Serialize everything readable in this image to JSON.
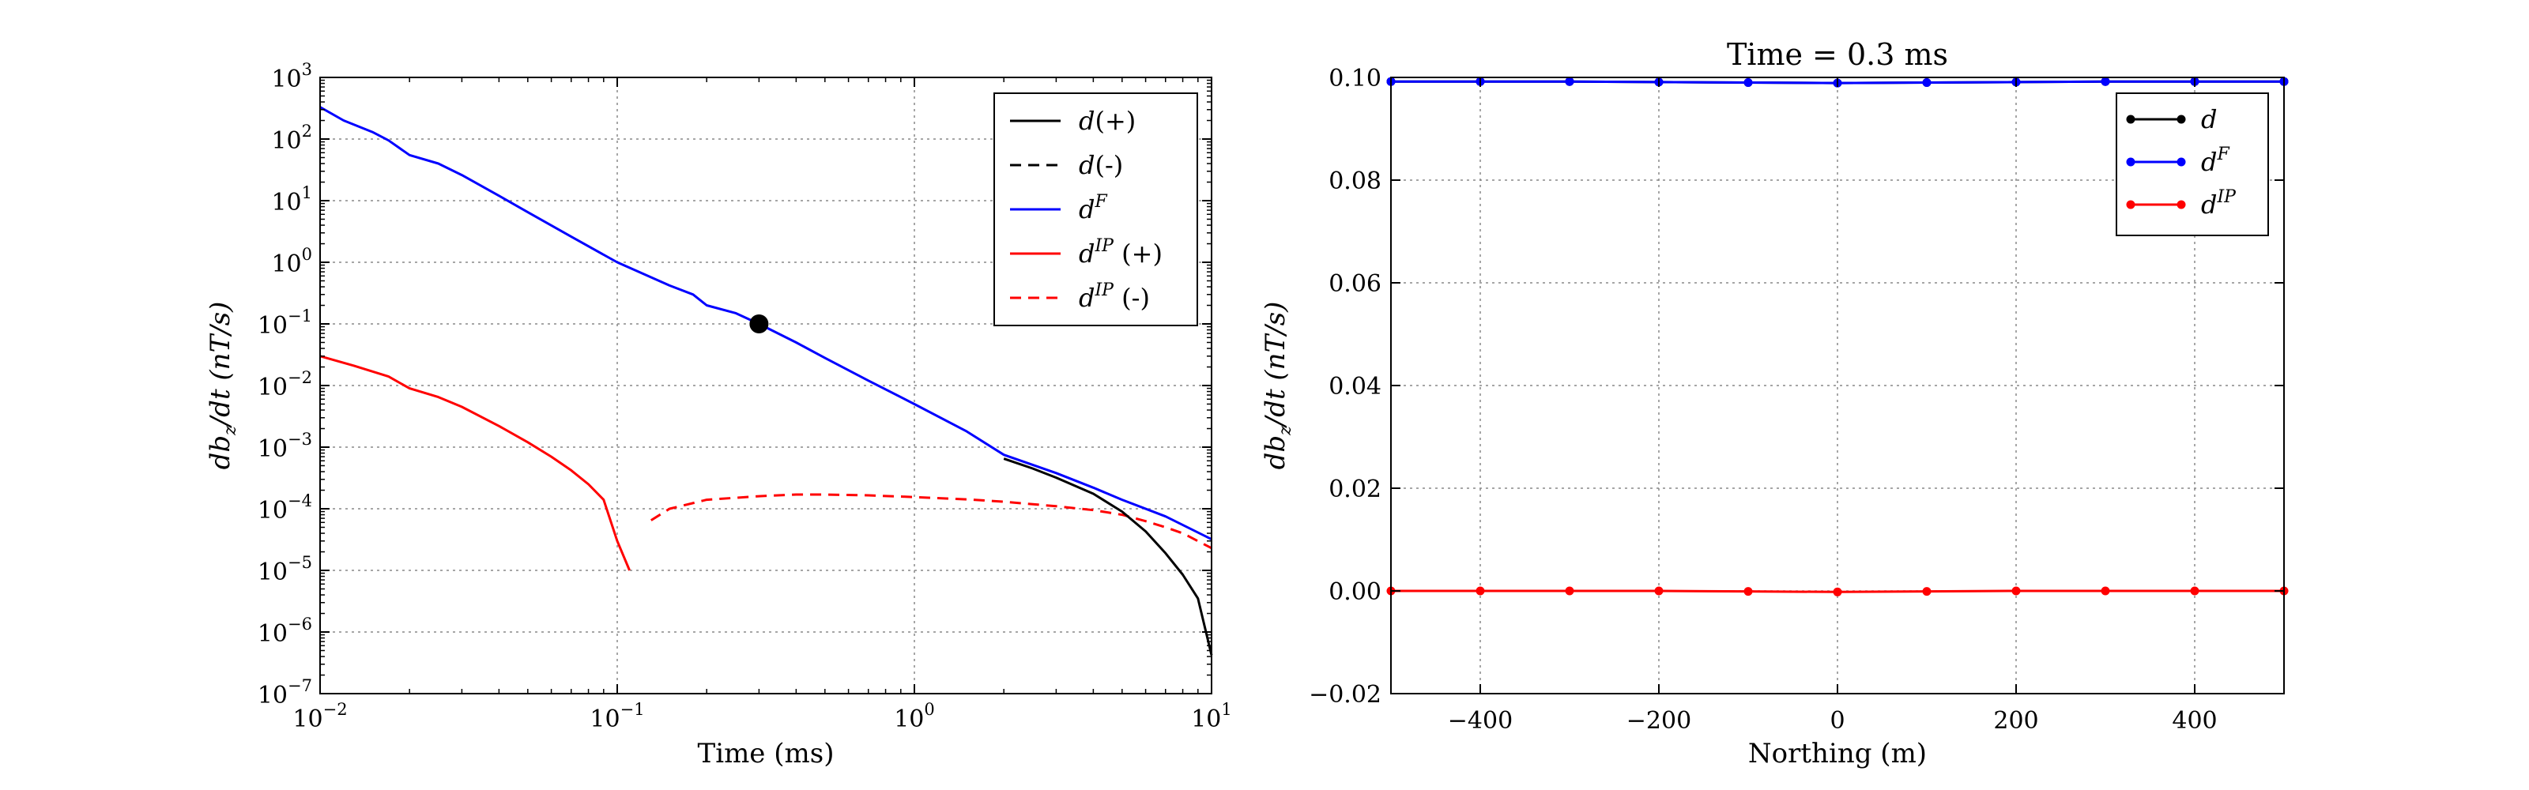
{
  "chart_data": [
    {
      "type": "line",
      "xscale": "log",
      "yscale": "log",
      "xlim": [
        0.01,
        10
      ],
      "ylim": [
        1e-07,
        1000
      ],
      "xlabel": "Time (ms)",
      "ylabel": "db_z/dt (nT/s)",
      "grid": true,
      "legend_position": "top-right",
      "xticks": [
        {
          "value": 0.01,
          "base": "10",
          "exp": "−2"
        },
        {
          "value": 0.1,
          "base": "10",
          "exp": "−1"
        },
        {
          "value": 1,
          "base": "10",
          "exp": "0"
        },
        {
          "value": 10,
          "base": "10",
          "exp": "1"
        }
      ],
      "yticks": [
        {
          "value": 1e-07,
          "base": "10",
          "exp": "−7"
        },
        {
          "value": 1e-06,
          "base": "10",
          "exp": "−6"
        },
        {
          "value": 1e-05,
          "base": "10",
          "exp": "−5"
        },
        {
          "value": 0.0001,
          "base": "10",
          "exp": "−4"
        },
        {
          "value": 0.001,
          "base": "10",
          "exp": "−3"
        },
        {
          "value": 0.01,
          "base": "10",
          "exp": "−2"
        },
        {
          "value": 0.1,
          "base": "10",
          "exp": "−1"
        },
        {
          "value": 1,
          "base": "10",
          "exp": "0"
        },
        {
          "value": 10,
          "base": "10",
          "exp": "1"
        },
        {
          "value": 100,
          "base": "10",
          "exp": "2"
        },
        {
          "value": 1000,
          "base": "10",
          "exp": "3"
        }
      ],
      "series": [
        {
          "name": "d(+)",
          "legend_main": "d",
          "legend_sup": "",
          "legend_suffix": "(+)",
          "color": "#000000",
          "dash": "solid",
          "x": [
            2.0,
            2.5,
            3.0,
            4.0,
            5.0,
            6.0,
            7.0,
            8.0,
            9.0,
            10.0
          ],
          "y": [
            0.00065,
            0.00045,
            0.00032,
            0.000175,
            9e-05,
            4.3e-05,
            1.9e-05,
            8.5e-06,
            3.5e-06,
            4.2e-07
          ]
        },
        {
          "name": "d(-)",
          "legend_main": "d",
          "legend_sup": "",
          "legend_suffix": "(-)",
          "color": "#000000",
          "dash": "dashed",
          "x": [],
          "y": []
        },
        {
          "name": "d^F",
          "legend_main": "d",
          "legend_sup": "F",
          "legend_suffix": "",
          "color": "#0000ff",
          "dash": "solid",
          "x": [
            0.01,
            0.012,
            0.015,
            0.017,
            0.02,
            0.025,
            0.03,
            0.04,
            0.05,
            0.07,
            0.1,
            0.15,
            0.18,
            0.2,
            0.25,
            0.3,
            0.4,
            0.5,
            0.7,
            1.0,
            1.5,
            2.0,
            3.0,
            4.0,
            5.0,
            7.0,
            10.0
          ],
          "y": [
            330,
            200,
            130,
            95,
            55,
            40,
            26,
            12,
            6.5,
            2.6,
            1.0,
            0.42,
            0.3,
            0.2,
            0.15,
            0.1,
            0.05,
            0.028,
            0.012,
            0.005,
            0.0018,
            0.00075,
            0.00038,
            0.00022,
            0.00014,
            7.5e-05,
            3.2e-05
          ]
        },
        {
          "name": "d^IP (+)",
          "legend_main": "d",
          "legend_sup": "IP",
          "legend_suffix": "(+)",
          "color": "#ff0000",
          "dash": "solid",
          "x": [
            0.01,
            0.013,
            0.017,
            0.02,
            0.025,
            0.03,
            0.04,
            0.05,
            0.06,
            0.07,
            0.08,
            0.09,
            0.1,
            0.11
          ],
          "y": [
            0.03,
            0.021,
            0.014,
            0.009,
            0.0065,
            0.0045,
            0.0022,
            0.0012,
            0.0007,
            0.00042,
            0.00025,
            0.00014,
            3e-05,
            1e-05
          ]
        },
        {
          "name": "d^IP (-)",
          "legend_main": "d",
          "legend_sup": "IP",
          "legend_suffix": "(-)",
          "color": "#ff0000",
          "dash": "dashed",
          "x": [
            0.13,
            0.15,
            0.2,
            0.3,
            0.4,
            0.5,
            0.7,
            1.0,
            1.5,
            2.0,
            3.0,
            4.0,
            5.0,
            6.0,
            7.0,
            8.0,
            10.0
          ],
          "y": [
            6.5e-05,
            0.0001,
            0.00014,
            0.00016,
            0.00017,
            0.00017,
            0.000165,
            0.000155,
            0.000142,
            0.00013,
            0.00011,
            9.5e-05,
            8e-05,
            6.3e-05,
            5e-05,
            4e-05,
            2.3e-05
          ]
        }
      ],
      "marker": {
        "x": 0.3,
        "y": 0.1,
        "color": "#000000"
      }
    },
    {
      "type": "line",
      "title": "Time = 0.3 ms",
      "xlim": [
        -500,
        500
      ],
      "ylim": [
        -0.02,
        0.1
      ],
      "xlabel": "Northing (m)",
      "ylabel": "db_z/dt (nT/s)",
      "grid": true,
      "legend_position": "top-right",
      "xticks": [
        "−400",
        "−200",
        "0",
        "200",
        "400"
      ],
      "xtick_values": [
        -400,
        -200,
        0,
        200,
        400
      ],
      "yticks": [
        "−0.02",
        "0.00",
        "0.02",
        "0.04",
        "0.06",
        "0.08",
        "0.10"
      ],
      "ytick_values": [
        -0.02,
        0.0,
        0.02,
        0.04,
        0.06,
        0.08,
        0.1
      ],
      "series": [
        {
          "name": "d",
          "legend_main": "d",
          "legend_sup": "",
          "color": "#000000",
          "x": [
            -500,
            -400,
            -300,
            -200,
            -100,
            0,
            100,
            200,
            300,
            400,
            500
          ],
          "y": [
            0.0992,
            0.0992,
            0.0992,
            0.0991,
            0.099,
            0.0989,
            0.099,
            0.0991,
            0.0992,
            0.0992,
            0.0992
          ]
        },
        {
          "name": "d^F",
          "legend_main": "d",
          "legend_sup": "F",
          "color": "#0000ff",
          "x": [
            -500,
            -400,
            -300,
            -200,
            -100,
            0,
            100,
            200,
            300,
            400,
            500
          ],
          "y": [
            0.0992,
            0.0992,
            0.0992,
            0.0991,
            0.099,
            0.0989,
            0.099,
            0.0991,
            0.0992,
            0.0992,
            0.0992
          ]
        },
        {
          "name": "d^IP",
          "legend_main": "d",
          "legend_sup": "IP",
          "color": "#ff0000",
          "x": [
            -500,
            -400,
            -300,
            -200,
            -100,
            0,
            100,
            200,
            300,
            400,
            500
          ],
          "y": [
            0.0,
            0.0,
            0.0,
            0.0,
            -0.0001,
            -0.0002,
            -0.0001,
            0.0,
            0.0,
            0.0,
            0.0
          ]
        }
      ]
    }
  ]
}
